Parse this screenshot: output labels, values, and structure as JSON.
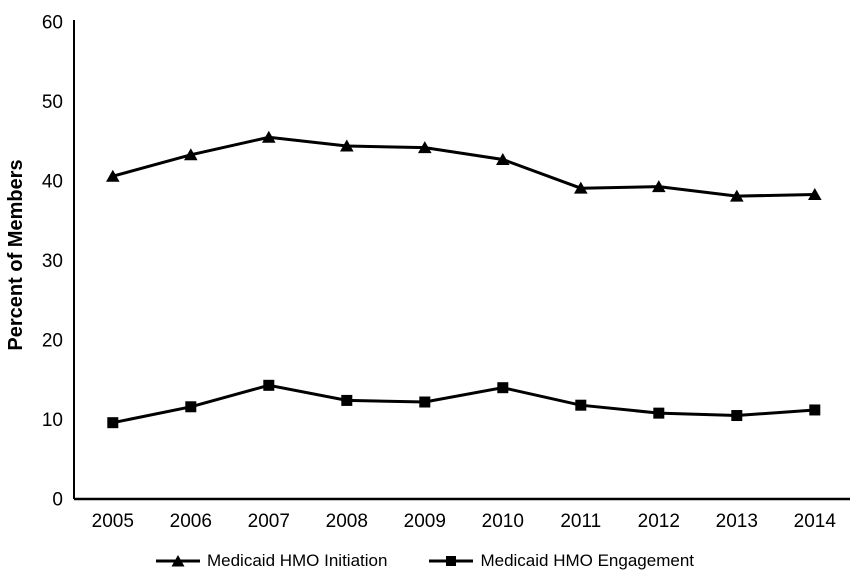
{
  "figure": {
    "background": "#ffffff",
    "foreground": "#000000"
  },
  "chart_data": {
    "type": "line",
    "title": "",
    "xlabel": "",
    "ylabel": "Percent of Members",
    "categories": [
      "2005",
      "2006",
      "2007",
      "2008",
      "2009",
      "2010",
      "2011",
      "2012",
      "2013",
      "2014"
    ],
    "ylim": [
      0,
      60
    ],
    "yticks": [
      0,
      10,
      20,
      30,
      40,
      50,
      60
    ],
    "grid": false,
    "legend_position": "bottom-center",
    "series": [
      {
        "name": "Medicaid HMO Initiation",
        "marker": "triangle",
        "color": "#000000",
        "values": [
          40.6,
          43.3,
          45.5,
          44.4,
          44.2,
          42.7,
          39.1,
          39.3,
          38.1,
          38.3
        ]
      },
      {
        "name": "Medicaid HMO Engagement",
        "marker": "square",
        "color": "#000000",
        "values": [
          9.6,
          11.6,
          14.3,
          12.4,
          12.2,
          14.0,
          11.8,
          10.8,
          10.5,
          11.2
        ]
      }
    ]
  }
}
